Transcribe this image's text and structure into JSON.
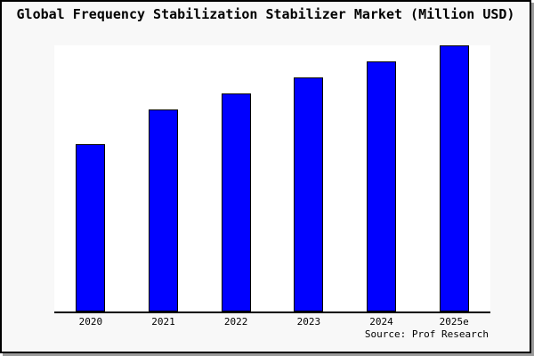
{
  "colors": {
    "bar_fill": "#0000ff",
    "bar_border": "#000000",
    "canvas_background": "#f8f8f8",
    "plot_background": "#ffffff",
    "axis": "#000000",
    "frame_border": "#000000",
    "frame_shadow": "#9a9a9a",
    "text": "#000000"
  },
  "chart_data": {
    "type": "bar",
    "title": "Global Frequency Stabilization Stabilizer Market (Million USD)",
    "categories": [
      "2020",
      "2021",
      "2022",
      "2023",
      "2024",
      "2025e"
    ],
    "values": [
      63,
      76,
      82,
      88,
      94,
      100
    ],
    "values_note": "No y-axis scale shown; values estimated from bar pixel heights as percent of tallest bar (2025e = 100)",
    "xlabel": "",
    "ylabel": "",
    "ylim": [
      0,
      100
    ],
    "grid": false,
    "legend": false,
    "source": "Source: Prof Research"
  }
}
